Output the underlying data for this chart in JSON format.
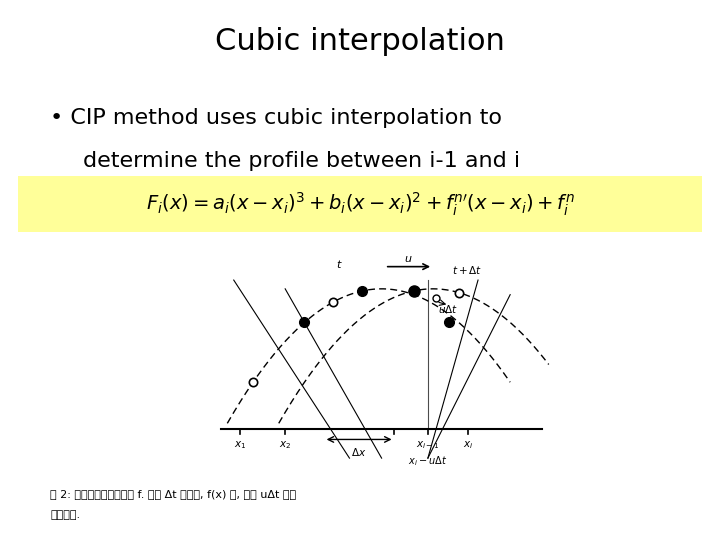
{
  "title": "Cubic interpolation",
  "bullet_line1": "CIP method uses cubic interpolation to",
  "bullet_line2": "determine the profile between i-1 and i",
  "formula_bg": "#FFFF99",
  "bg_color": "#ffffff",
  "title_fontsize": 22,
  "bullet_fontsize": 16,
  "formula_fontsize": 14,
  "caption_line1": "図 2: 離散的に与えられた f. 毎間 Δt の間に, f(x) は, 形を uΔt だけ",
  "caption_line2": "移計する.",
  "caption_fontsize": 8
}
